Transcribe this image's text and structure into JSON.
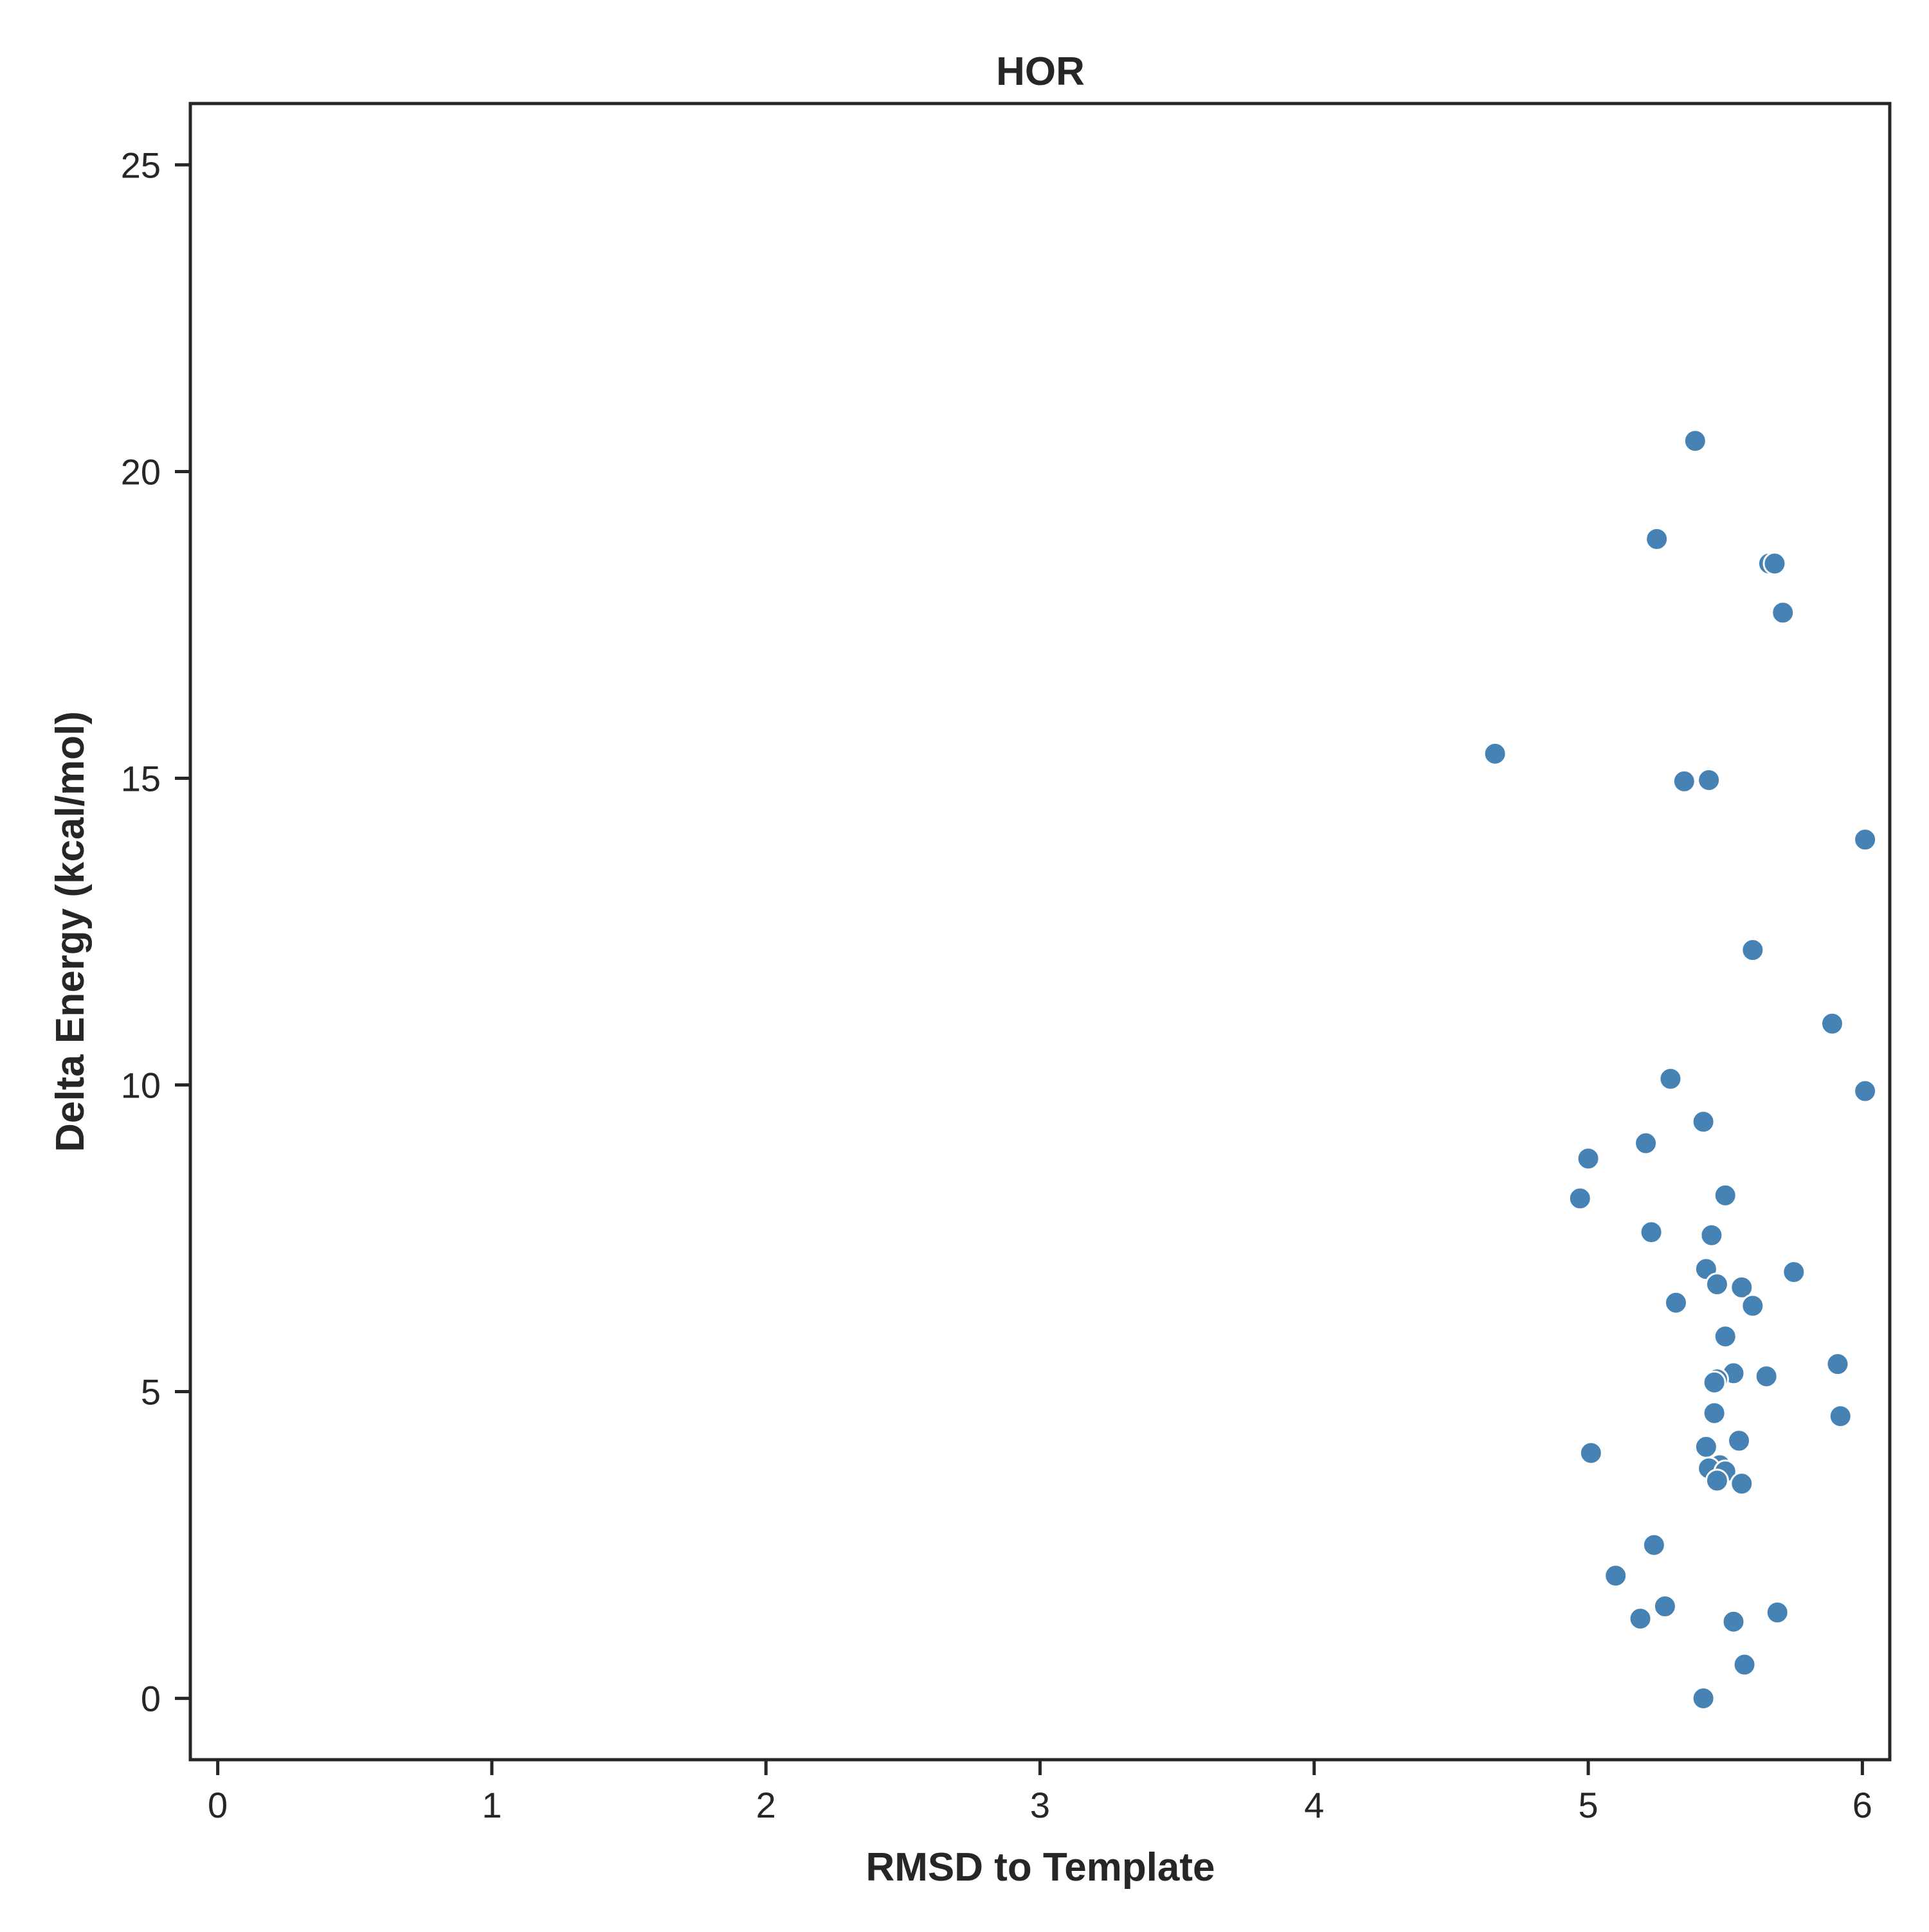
{
  "chart_data": {
    "type": "scatter",
    "title": "HOR",
    "xlabel": "RMSD to Template",
    "ylabel": "Delta Energy (kcal/mol)",
    "xlim": [
      -0.1,
      6.1
    ],
    "ylim": [
      -1.0,
      26.0
    ],
    "xticks": [
      0,
      1,
      2,
      3,
      4,
      5,
      6
    ],
    "yticks": [
      0,
      5,
      10,
      15,
      20,
      25
    ],
    "grid": false,
    "legend": "none",
    "marker_color": "#4682b4",
    "marker_edge_color": "#ffffff",
    "axis_color": "#262626",
    "series": [
      {
        "x": [
          5.39,
          5.25,
          5.66,
          5.68,
          5.71,
          4.66,
          5.35,
          5.44,
          6.01,
          5.6,
          5.89,
          6.01,
          5.3,
          5.42,
          5.21,
          5.0,
          4.97,
          5.5,
          5.23,
          5.45,
          5.43,
          5.47,
          5.56,
          5.75,
          5.6,
          5.32,
          5.5,
          5.91,
          5.53,
          5.65,
          5.47,
          5.46,
          5.46,
          5.92,
          5.55,
          5.43,
          5.01,
          5.48,
          5.44,
          5.5,
          5.47,
          5.56,
          5.24,
          5.1,
          5.28,
          5.19,
          5.53,
          5.69,
          5.57,
          5.42
        ],
        "y": [
          20.5,
          18.9,
          18.5,
          18.5,
          17.7,
          15.4,
          14.95,
          14.97,
          14.0,
          12.2,
          11.0,
          9.9,
          10.1,
          9.4,
          9.05,
          8.8,
          8.15,
          8.2,
          7.6,
          7.55,
          7.0,
          6.75,
          6.7,
          6.95,
          6.4,
          6.45,
          5.9,
          5.45,
          5.3,
          5.25,
          5.2,
          5.15,
          4.65,
          4.6,
          4.2,
          4.1,
          4.0,
          3.8,
          3.75,
          3.7,
          3.55,
          3.5,
          2.5,
          2.0,
          1.5,
          1.3,
          1.25,
          1.4,
          0.55,
          0.0
        ]
      }
    ]
  }
}
